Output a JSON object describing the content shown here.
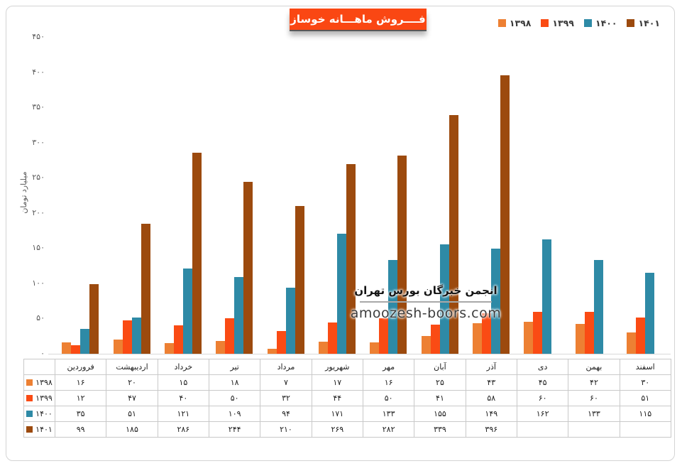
{
  "panel": {
    "background": "#ffffff",
    "border_color": "#d4d4d4"
  },
  "title": {
    "text": "فــــروش ماهـــانه خوساز",
    "bg_color": "#FA4713",
    "text_color": "#ffffff"
  },
  "watermark": {
    "line1": "انجمن خبرگان بورس تهران",
    "line2": "amoozesh-boors.com"
  },
  "chart_data": {
    "type": "bar",
    "title": "فــــروش ماهـــانه خوساز",
    "ylabel": "میلیارد تومان",
    "ylim": [
      0,
      450
    ],
    "ytick_step": 50,
    "yticks": [
      0,
      50,
      100,
      150,
      200,
      250,
      300,
      350,
      400,
      450
    ],
    "grid": false,
    "legend_position": "top-right",
    "data_table_shown": true,
    "categories": [
      "فروردین",
      "اردیبهشت",
      "خرداد",
      "تیر",
      "مرداد",
      "شهریور",
      "مهر",
      "آبان",
      "آذر",
      "دی",
      "بهمن",
      "اسفند"
    ],
    "series": [
      {
        "name": "۱۳۹۸",
        "color": "#ED8033",
        "values": [
          16,
          20,
          15,
          18,
          7,
          17,
          16,
          25,
          43,
          45,
          42,
          30
        ]
      },
      {
        "name": "۱۳۹۹",
        "color": "#FA4B14",
        "values": [
          12,
          47,
          40,
          50,
          32,
          44,
          50,
          41,
          58,
          60,
          60,
          51
        ]
      },
      {
        "name": "۱۴۰۰",
        "color": "#2E8AA6",
        "values": [
          35,
          51,
          121,
          109,
          94,
          171,
          133,
          155,
          149,
          162,
          133,
          115
        ]
      },
      {
        "name": "۱۴۰۱",
        "color": "#9C4A0E",
        "values": [
          99,
          185,
          286,
          244,
          210,
          269,
          282,
          339,
          396,
          null,
          null,
          null
        ]
      }
    ]
  }
}
